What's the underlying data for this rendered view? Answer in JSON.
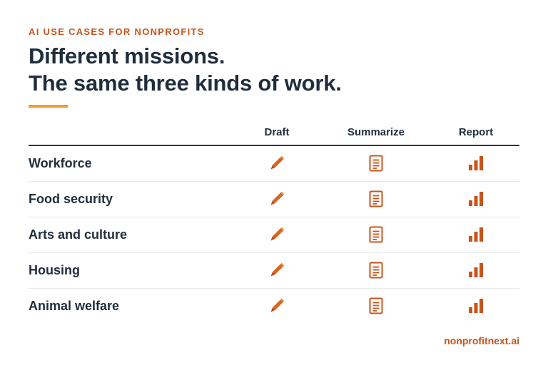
{
  "eyebrow": "AI USE CASES FOR NONPROFITS",
  "headline": {
    "line1": "Different missions.",
    "line2": "The same three kinds of work."
  },
  "table": {
    "columns": [
      "Draft",
      "Summarize",
      "Report"
    ],
    "column_icons": [
      "pencil-icon",
      "document-icon",
      "bar-chart-icon"
    ],
    "rows": [
      {
        "label": "Workforce"
      },
      {
        "label": "Food security"
      },
      {
        "label": "Arts and culture"
      },
      {
        "label": "Housing"
      },
      {
        "label": "Animal welfare"
      }
    ]
  },
  "footer": {
    "site": "nonprofitnext.ai"
  },
  "colors": {
    "accent_orange": "#c8541b",
    "accent_bar": "#f29a2e",
    "text_dark": "#1f2d3d",
    "rule": "#27343f"
  }
}
